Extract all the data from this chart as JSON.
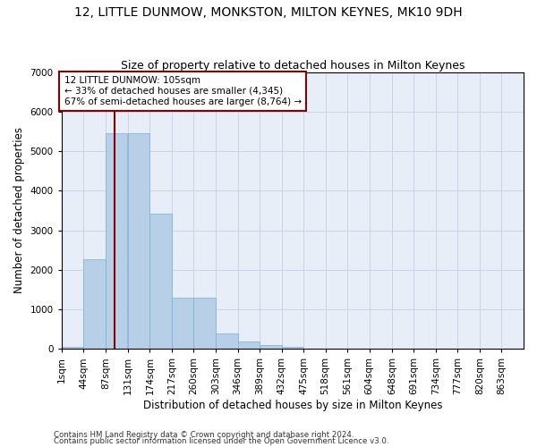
{
  "title": "12, LITTLE DUNMOW, MONKSTON, MILTON KEYNES, MK10 9DH",
  "subtitle": "Size of property relative to detached houses in Milton Keynes",
  "xlabel": "Distribution of detached houses by size in Milton Keynes",
  "ylabel": "Number of detached properties",
  "footnote1": "Contains HM Land Registry data © Crown copyright and database right 2024.",
  "footnote2": "Contains public sector information licensed under the Open Government Licence v3.0.",
  "annotation_title": "12 LITTLE DUNMOW: 105sqm",
  "annotation_line1": "← 33% of detached houses are smaller (4,345)",
  "annotation_line2": "67% of semi-detached houses are larger (8,764) →",
  "property_size": 105,
  "bins": [
    1,
    44,
    87,
    131,
    174,
    217,
    260,
    303,
    346,
    389,
    432,
    475,
    518,
    561,
    604,
    648,
    691,
    734,
    777,
    820,
    863
  ],
  "values": [
    50,
    2270,
    5450,
    5450,
    3430,
    1290,
    1290,
    390,
    195,
    100,
    50,
    0,
    0,
    0,
    0,
    0,
    0,
    0,
    0,
    0
  ],
  "bar_color": "#b8cfe8",
  "bar_edge_color": "#7aadd4",
  "vline_color": "#8b0000",
  "vline_x": 105,
  "ylim": [
    0,
    7000
  ],
  "yticks": [
    0,
    1000,
    2000,
    3000,
    4000,
    5000,
    6000,
    7000
  ],
  "annotation_box_color": "#8b0000",
  "background_color": "#ffffff",
  "plot_bg_color": "#e8eef8",
  "grid_color": "#c8d4e8",
  "title_fontsize": 10,
  "subtitle_fontsize": 9,
  "axis_label_fontsize": 8.5,
  "tick_fontsize": 7.5,
  "annotation_fontsize": 7.5
}
